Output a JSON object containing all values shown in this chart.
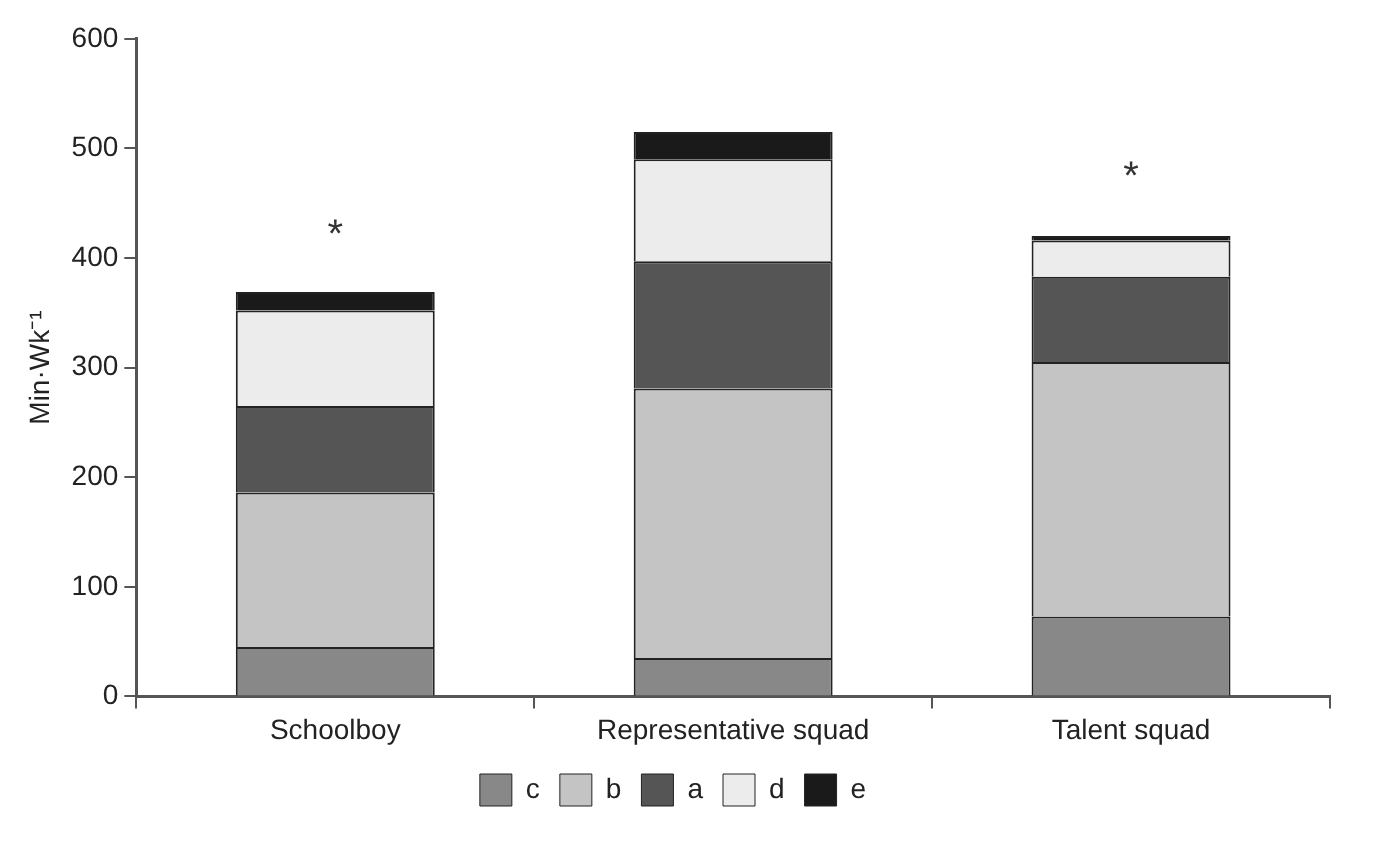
{
  "chart_data": {
    "type": "bar",
    "stacked": true,
    "ylabel": "Min·Wk⁻¹",
    "categories": [
      "Schoolboy",
      "Representative squad",
      "Talent squad"
    ],
    "series": [
      {
        "name": "c",
        "color": "#888888",
        "values": [
          45,
          35,
          73
        ]
      },
      {
        "name": "b",
        "color": "#c4c4c4",
        "values": [
          141,
          246,
          232
        ]
      },
      {
        "name": "a",
        "color": "#555555",
        "values": [
          79,
          116,
          78
        ]
      },
      {
        "name": "d",
        "color": "#ececec",
        "values": [
          87,
          93,
          33
        ]
      },
      {
        "name": "e",
        "color": "#1a1a1a",
        "values": [
          17,
          25,
          4
        ]
      }
    ],
    "ylim": [
      0,
      600
    ],
    "yticks": [
      0,
      100,
      200,
      300,
      400,
      500,
      600
    ],
    "grid": false,
    "legend": "bottom",
    "annotations": [
      {
        "text": "*",
        "x": "Schoolboy",
        "y": 369
      },
      {
        "text": "*",
        "x": "Talent squad",
        "y": 422
      }
    ]
  }
}
